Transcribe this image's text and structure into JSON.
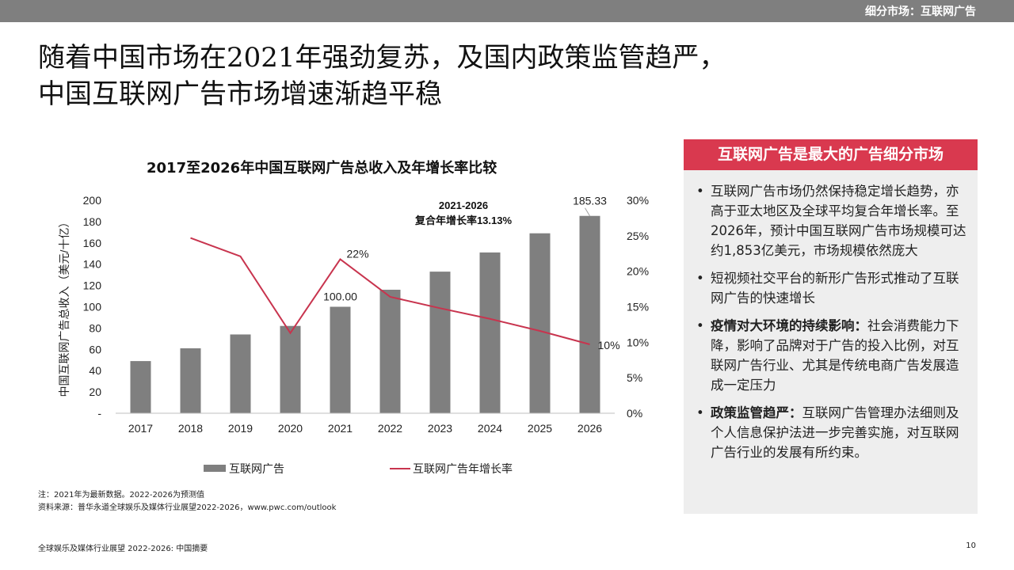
{
  "header": {
    "section_label": "细分市场：互联网广告"
  },
  "title": {
    "line1": "随着中国市场在2021年强劲复苏，及国内政策监管趋严，",
    "line2": "中国互联网广告市场增速渐趋平稳"
  },
  "chart_data": {
    "type": "bar",
    "title": "2017至2026年中国互联网广告总收入及年增长率比较",
    "ylabel": "中国互联网广告总收入（美元/十亿）",
    "categories": [
      "2017",
      "2018",
      "2019",
      "2020",
      "2021",
      "2022",
      "2023",
      "2024",
      "2025",
      "2026"
    ],
    "series": [
      {
        "name": "互联网广告",
        "type": "bar",
        "color": "#7f7f7f",
        "values": [
          49,
          61,
          74,
          82,
          100,
          116,
          133,
          151,
          169,
          185.33
        ]
      },
      {
        "name": "互联网广告年增长率",
        "type": "line",
        "axis": "right",
        "color": "#c8344e",
        "values": [
          null,
          24.7,
          22.1,
          11.3,
          21.7,
          16.4,
          14.8,
          13.3,
          11.6,
          9.7
        ]
      }
    ],
    "ylim": [
      0,
      200
    ],
    "y_ticks": [
      "-",
      "20",
      "40",
      "60",
      "80",
      "100",
      "120",
      "140",
      "160",
      "180",
      "200"
    ],
    "y2lim": [
      0,
      30
    ],
    "y2_ticks": [
      "0%",
      "5%",
      "10%",
      "15%",
      "20%",
      "25%",
      "30%"
    ],
    "data_labels": [
      {
        "series": 0,
        "index": 4,
        "text": "100.00"
      },
      {
        "series": 0,
        "index": 9,
        "text": "185.33"
      },
      {
        "series": 1,
        "index": 4,
        "text": "22%"
      },
      {
        "series": 1,
        "index": 9,
        "text": "10%"
      }
    ],
    "annotation": {
      "line1": "2021-2026",
      "line2": "复合年增长率13.13%"
    },
    "legend_position": "bottom",
    "grid": false
  },
  "notes": {
    "note": "注：2021年为最新数据。2022-2026为预测值",
    "source": "资料来源：普华永道全球娱乐及媒体行业展望2022-2026，www.pwc.com/outlook"
  },
  "panel": {
    "title": "互联网广告是最大的广告细分市场",
    "bullet": "•",
    "items": [
      {
        "bold": "",
        "text": "互联网广告市场仍然保持稳定增长趋势，亦高于亚太地区及全球平均复合年增长率。至2026年，预计中国互联网广告市场规模可达约1,853亿美元，市场规模依然庞大"
      },
      {
        "bold": "",
        "text": "短视频社交平台的新形广告形式推动了互联网广告的快速增长"
      },
      {
        "bold": "疫情对大环境的持续影响：",
        "text": "社会消费能力下降，影响了品牌对于广告的投入比例，对互联网广告行业、尤其是传统电商广告发展造成一定压力"
      },
      {
        "bold": "政策监管趋严：",
        "text": "互联网广告管理办法细则及个人信息保护法进一步完善实施，对互联网广告行业的发展有所约束。"
      }
    ]
  },
  "footer": {
    "report": "全球娱乐及媒体行业展望 2022-2026: 中国摘要",
    "page": "10"
  }
}
